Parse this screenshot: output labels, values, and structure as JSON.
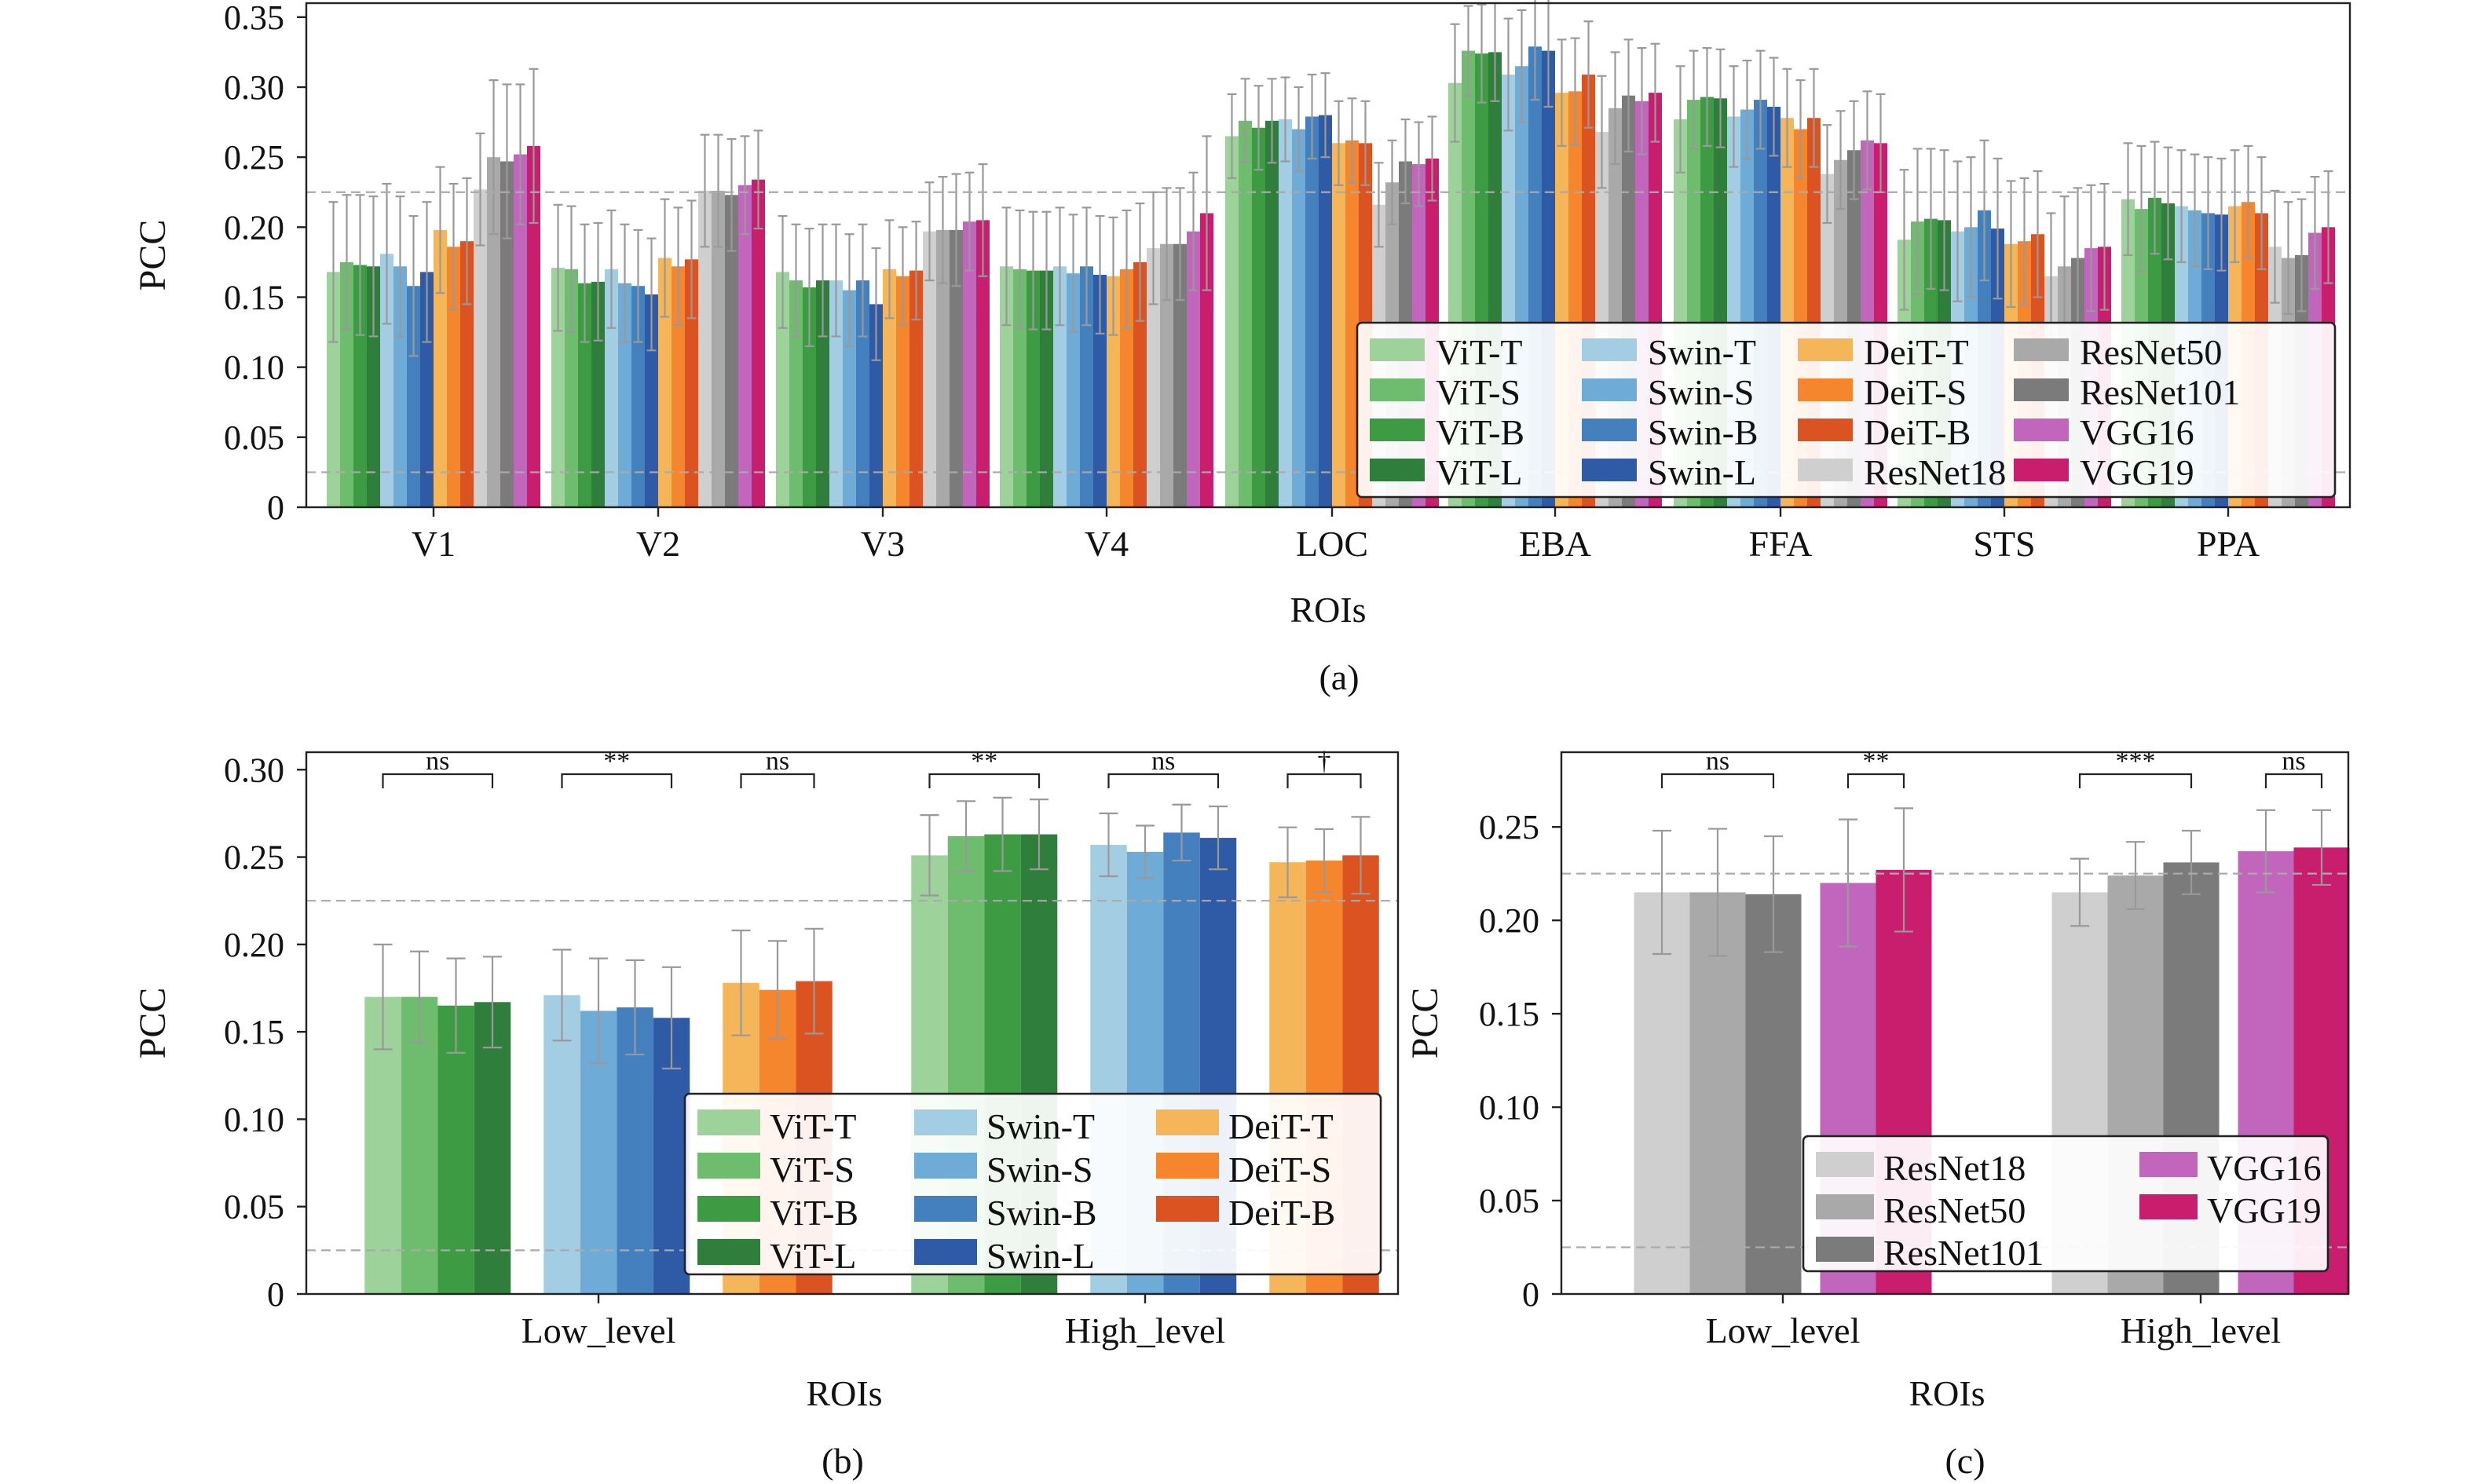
{
  "figure": {
    "caption_a": "(a)",
    "caption_b": "(b)",
    "caption_c": "(c)"
  },
  "colors": {
    "ViT-T": "#9dd39b",
    "ViT-S": "#6ebd6f",
    "ViT-B": "#3d9c43",
    "ViT-L": "#2f7e3c",
    "Swin-T": "#a3cde2",
    "Swin-S": "#6eabd6",
    "Swin-B": "#4480be",
    "Swin-L": "#2f5aa5",
    "DeiT-T": "#f5b659",
    "DeiT-S": "#f5862e",
    "DeiT-B": "#dc5322",
    "ResNet18": "#cfcfcf",
    "ResNet50": "#a9a9a9",
    "ResNet101": "#7b7b7b",
    "VGG16": "#c266bd",
    "VGG19": "#c81e6d",
    "errorbar": "#999999",
    "refline": "#aaaaaa"
  },
  "chart_data": [
    {
      "id": "a",
      "type": "bar",
      "caption": "(a)",
      "xlabel": "ROIs",
      "ylabel": "PCC",
      "ylim": [
        0,
        0.36
      ],
      "yticks": [
        0,
        0.05,
        0.1,
        0.15,
        0.2,
        0.25,
        0.3,
        0.35
      ],
      "ytick_labels": [
        "0",
        "0.05",
        "0.10",
        "0.15",
        "0.20",
        "0.25",
        "0.30",
        "0.35"
      ],
      "reference_lines": [
        0.225,
        0.025
      ],
      "categories": [
        "V1",
        "V2",
        "V3",
        "V4",
        "LOC",
        "EBA",
        "FFA",
        "STS",
        "PPA"
      ],
      "legend_position": "lower-right",
      "legend_columns": 4,
      "series": [
        {
          "name": "ViT-T",
          "values": [
            0.168,
            0.171,
            0.168,
            0.172,
            0.265,
            0.303,
            0.277,
            0.191,
            0.22
          ],
          "errors": [
            0.05,
            0.045,
            0.04,
            0.042,
            0.03,
            0.042,
            0.038,
            0.05,
            0.04
          ]
        },
        {
          "name": "ViT-S",
          "values": [
            0.175,
            0.17,
            0.162,
            0.17,
            0.276,
            0.326,
            0.291,
            0.204,
            0.213
          ],
          "errors": [
            0.048,
            0.045,
            0.04,
            0.042,
            0.03,
            0.032,
            0.035,
            0.052,
            0.045
          ]
        },
        {
          "name": "ViT-B",
          "values": [
            0.173,
            0.16,
            0.157,
            0.169,
            0.271,
            0.324,
            0.293,
            0.206,
            0.221
          ],
          "errors": [
            0.05,
            0.042,
            0.042,
            0.042,
            0.03,
            0.035,
            0.035,
            0.05,
            0.04
          ]
        },
        {
          "name": "ViT-L",
          "values": [
            0.172,
            0.161,
            0.162,
            0.169,
            0.276,
            0.325,
            0.292,
            0.205,
            0.217
          ],
          "errors": [
            0.05,
            0.042,
            0.04,
            0.042,
            0.03,
            0.035,
            0.035,
            0.05,
            0.04
          ]
        },
        {
          "name": "Swin-T",
          "values": [
            0.181,
            0.17,
            0.162,
            0.172,
            0.277,
            0.309,
            0.279,
            0.197,
            0.215
          ],
          "errors": [
            0.05,
            0.042,
            0.04,
            0.042,
            0.03,
            0.04,
            0.036,
            0.05,
            0.04
          ]
        },
        {
          "name": "Swin-S",
          "values": [
            0.172,
            0.16,
            0.155,
            0.167,
            0.27,
            0.315,
            0.284,
            0.2,
            0.212
          ],
          "errors": [
            0.05,
            0.042,
            0.04,
            0.042,
            0.03,
            0.04,
            0.035,
            0.05,
            0.04
          ]
        },
        {
          "name": "Swin-B",
          "values": [
            0.158,
            0.158,
            0.162,
            0.172,
            0.279,
            0.329,
            0.291,
            0.212,
            0.21
          ],
          "errors": [
            0.05,
            0.04,
            0.04,
            0.042,
            0.03,
            0.038,
            0.035,
            0.05,
            0.04
          ]
        },
        {
          "name": "Swin-L",
          "values": [
            0.168,
            0.152,
            0.145,
            0.166,
            0.28,
            0.326,
            0.286,
            0.199,
            0.209
          ],
          "errors": [
            0.05,
            0.04,
            0.04,
            0.042,
            0.03,
            0.04,
            0.035,
            0.05,
            0.04
          ]
        },
        {
          "name": "DeiT-T",
          "values": [
            0.198,
            0.178,
            0.17,
            0.165,
            0.26,
            0.296,
            0.278,
            0.188,
            0.215
          ],
          "errors": [
            0.045,
            0.042,
            0.035,
            0.042,
            0.03,
            0.038,
            0.035,
            0.045,
            0.04
          ]
        },
        {
          "name": "DeiT-S",
          "values": [
            0.186,
            0.172,
            0.165,
            0.17,
            0.262,
            0.297,
            0.27,
            0.19,
            0.218
          ],
          "errors": [
            0.045,
            0.042,
            0.035,
            0.042,
            0.03,
            0.038,
            0.035,
            0.045,
            0.04
          ]
        },
        {
          "name": "DeiT-B",
          "values": [
            0.19,
            0.177,
            0.169,
            0.175,
            0.26,
            0.309,
            0.278,
            0.195,
            0.21
          ],
          "errors": [
            0.045,
            0.042,
            0.035,
            0.042,
            0.03,
            0.038,
            0.035,
            0.045,
            0.04
          ]
        },
        {
          "name": "ResNet18",
          "values": [
            0.227,
            0.226,
            0.197,
            0.185,
            0.216,
            0.268,
            0.238,
            0.165,
            0.186
          ],
          "errors": [
            0.04,
            0.04,
            0.035,
            0.04,
            0.03,
            0.04,
            0.035,
            0.045,
            0.04
          ]
        },
        {
          "name": "ResNet50",
          "values": [
            0.25,
            0.226,
            0.198,
            0.188,
            0.232,
            0.285,
            0.248,
            0.172,
            0.178
          ],
          "errors": [
            0.055,
            0.04,
            0.038,
            0.04,
            0.03,
            0.04,
            0.035,
            0.05,
            0.04
          ]
        },
        {
          "name": "ResNet101",
          "values": [
            0.247,
            0.223,
            0.198,
            0.188,
            0.247,
            0.294,
            0.255,
            0.178,
            0.18
          ],
          "errors": [
            0.055,
            0.04,
            0.04,
            0.04,
            0.03,
            0.04,
            0.035,
            0.05,
            0.04
          ]
        },
        {
          "name": "VGG16",
          "values": [
            0.252,
            0.23,
            0.204,
            0.197,
            0.245,
            0.29,
            0.262,
            0.185,
            0.196
          ],
          "errors": [
            0.05,
            0.035,
            0.035,
            0.042,
            0.03,
            0.038,
            0.035,
            0.045,
            0.04
          ]
        },
        {
          "name": "VGG19",
          "values": [
            0.258,
            0.234,
            0.205,
            0.21,
            0.249,
            0.296,
            0.26,
            0.186,
            0.2
          ],
          "errors": [
            0.055,
            0.035,
            0.04,
            0.055,
            0.03,
            0.035,
            0.035,
            0.045,
            0.04
          ]
        }
      ]
    },
    {
      "id": "b",
      "type": "bar",
      "caption": "(b)",
      "xlabel": "ROIs",
      "ylabel": "PCC",
      "ylim": [
        0,
        0.31
      ],
      "yticks": [
        0,
        0.05,
        0.1,
        0.15,
        0.2,
        0.25,
        0.3
      ],
      "ytick_labels": [
        "0",
        "0.05",
        "0.10",
        "0.15",
        "0.20",
        "0.25",
        "0.30"
      ],
      "reference_lines": [
        0.225,
        0.025
      ],
      "categories": [
        "Low_level",
        "High_level"
      ],
      "groups": [
        [
          "ViT-T",
          "ViT-S",
          "ViT-B",
          "ViT-L"
        ],
        [
          "Swin-T",
          "Swin-S",
          "Swin-B",
          "Swin-L"
        ],
        [
          "DeiT-T",
          "DeiT-S",
          "DeiT-B"
        ]
      ],
      "legend_position": "lower-right",
      "legend_columns": 3,
      "series": [
        {
          "name": "ViT-T",
          "values": [
            0.17,
            0.251
          ],
          "errors": [
            0.03,
            0.023
          ]
        },
        {
          "name": "ViT-S",
          "values": [
            0.17,
            0.262
          ],
          "errors": [
            0.026,
            0.02
          ]
        },
        {
          "name": "ViT-B",
          "values": [
            0.165,
            0.263
          ],
          "errors": [
            0.027,
            0.021
          ]
        },
        {
          "name": "ViT-L",
          "values": [
            0.167,
            0.263
          ],
          "errors": [
            0.026,
            0.02
          ]
        },
        {
          "name": "Swin-T",
          "values": [
            0.171,
            0.257
          ],
          "errors": [
            0.026,
            0.018
          ]
        },
        {
          "name": "Swin-S",
          "values": [
            0.162,
            0.253
          ],
          "errors": [
            0.03,
            0.015
          ]
        },
        {
          "name": "Swin-B",
          "values": [
            0.164,
            0.264
          ],
          "errors": [
            0.027,
            0.016
          ]
        },
        {
          "name": "Swin-L",
          "values": [
            0.158,
            0.261
          ],
          "errors": [
            0.029,
            0.018
          ]
        },
        {
          "name": "DeiT-T",
          "values": [
            0.178,
            0.247
          ],
          "errors": [
            0.03,
            0.02
          ]
        },
        {
          "name": "DeiT-S",
          "values": [
            0.174,
            0.248
          ],
          "errors": [
            0.028,
            0.018
          ]
        },
        {
          "name": "DeiT-B",
          "values": [
            0.179,
            0.251
          ],
          "errors": [
            0.03,
            0.022
          ]
        }
      ],
      "significance": [
        {
          "category": "Low_level",
          "group": 0,
          "label": "ns"
        },
        {
          "category": "Low_level",
          "group": 1,
          "label": "**"
        },
        {
          "category": "Low_level",
          "group": 2,
          "label": "ns"
        },
        {
          "category": "High_level",
          "group": 0,
          "label": "**"
        },
        {
          "category": "High_level",
          "group": 1,
          "label": "ns"
        },
        {
          "category": "High_level",
          "group": 2,
          "label": "†"
        }
      ]
    },
    {
      "id": "c",
      "type": "bar",
      "caption": "(c)",
      "xlabel": "ROIs",
      "ylabel": "PCC",
      "ylim": [
        0,
        0.29
      ],
      "yticks": [
        0,
        0.05,
        0.1,
        0.15,
        0.2,
        0.25
      ],
      "ytick_labels": [
        "0",
        "0.05",
        "0.10",
        "0.15",
        "0.20",
        "0.25"
      ],
      "reference_lines": [
        0.225,
        0.025
      ],
      "categories": [
        "Low_level",
        "High_level"
      ],
      "groups": [
        [
          "ResNet18",
          "ResNet50",
          "ResNet101"
        ],
        [
          "VGG16",
          "VGG19"
        ]
      ],
      "legend_position": "lower-right",
      "legend_columns": 2,
      "legend_order": [
        [
          "ResNet18",
          "ResNet50",
          "ResNet101"
        ],
        [
          "VGG16",
          "VGG19"
        ]
      ],
      "series": [
        {
          "name": "ResNet18",
          "values": [
            0.215,
            0.215
          ],
          "errors": [
            0.033,
            0.018
          ]
        },
        {
          "name": "ResNet50",
          "values": [
            0.215,
            0.224
          ],
          "errors": [
            0.034,
            0.018
          ]
        },
        {
          "name": "ResNet101",
          "values": [
            0.214,
            0.231
          ],
          "errors": [
            0.031,
            0.017
          ]
        },
        {
          "name": "VGG16",
          "values": [
            0.22,
            0.237
          ],
          "errors": [
            0.034,
            0.022
          ]
        },
        {
          "name": "VGG19",
          "values": [
            0.227,
            0.239
          ],
          "errors": [
            0.033,
            0.02
          ]
        }
      ],
      "significance": [
        {
          "category": "Low_level",
          "group": 0,
          "label": "ns"
        },
        {
          "category": "Low_level",
          "group": 1,
          "label": "**"
        },
        {
          "category": "High_level",
          "group": 0,
          "label": "***"
        },
        {
          "category": "High_level",
          "group": 1,
          "label": "ns"
        }
      ]
    }
  ]
}
